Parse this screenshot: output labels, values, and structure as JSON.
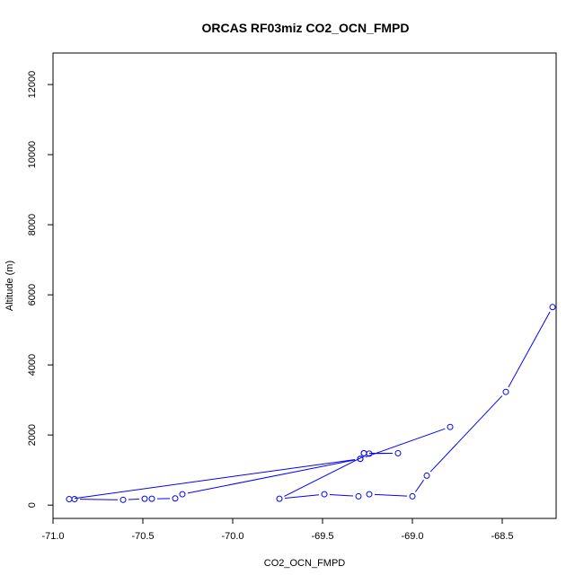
{
  "chart_data": {
    "type": "line",
    "title": "ORCAS RF03miz CO2_OCN_FMPD",
    "xlabel": "CO2_OCN_FMPD",
    "ylabel": "Altitude (m)",
    "xlim": [
      -71.0,
      -68.2
    ],
    "ylim": [
      -380,
      12900
    ],
    "xticks": [
      -71.0,
      -70.5,
      -70.0,
      -69.5,
      -69.0,
      -68.5
    ],
    "xtick_labels": [
      "-71.0",
      "-70.5",
      "-70.0",
      "-69.5",
      "-69.0",
      "-68.5"
    ],
    "yticks": [
      0,
      2000,
      4000,
      6000,
      8000,
      10000,
      12000
    ],
    "ytick_labels": [
      "0",
      "2000",
      "4000",
      "6000",
      "8000",
      "10000",
      "12000"
    ],
    "color": "#0000ff",
    "markers": "open-circle",
    "grid": false,
    "series": [
      {
        "x": [
          -68.22,
          -68.48,
          -68.92,
          -69.0,
          -69.24,
          -69.3,
          -69.49,
          -69.74,
          -69.24,
          -69.08,
          -69.27,
          -69.27,
          -69.29,
          -70.28,
          -70.32,
          -70.45,
          -70.49,
          -70.61,
          -70.88,
          -70.91,
          -69.29,
          -68.79
        ],
        "y": [
          5650,
          3230,
          840,
          250,
          310,
          250,
          310,
          180,
          1470,
          1480,
          1480,
          1480,
          1320,
          310,
          190,
          180,
          180,
          150,
          170,
          170,
          1320,
          2230
        ]
      }
    ]
  }
}
